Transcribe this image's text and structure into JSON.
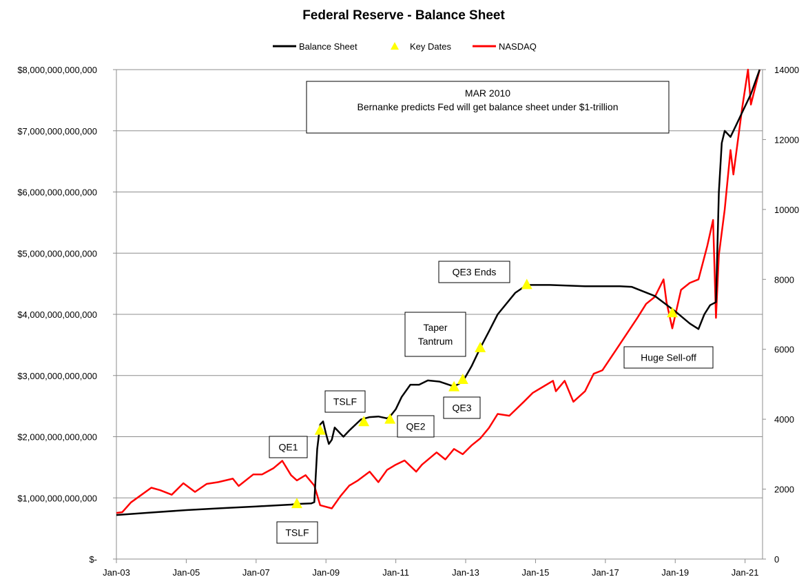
{
  "chart_data": {
    "type": "line",
    "title": "Federal Reserve - Balance Sheet",
    "legend": {
      "placement": "top-center",
      "entries": [
        {
          "name": "Balance Sheet",
          "color": "#000000",
          "marker": "line"
        },
        {
          "name": "Key Dates",
          "color": "#ffff00",
          "marker": "triangle"
        },
        {
          "name": "NASDAQ",
          "color": "#ff0000",
          "marker": "line"
        }
      ]
    },
    "x_axis": {
      "type": "date",
      "range": [
        "2003-01",
        "2021-07"
      ],
      "tick_labels": [
        "Jan-03",
        "Jan-05",
        "Jan-07",
        "Jan-09",
        "Jan-11",
        "Jan-13",
        "Jan-15",
        "Jan-17",
        "Jan-19",
        "Jan-21"
      ],
      "tick_dates": [
        "2003-01",
        "2005-01",
        "2007-01",
        "2009-01",
        "2011-01",
        "2013-01",
        "2015-01",
        "2017-01",
        "2019-01",
        "2021-01"
      ]
    },
    "y_left": {
      "range": [
        0,
        8000000000000
      ],
      "tick_values": [
        0,
        1000000000000,
        2000000000000,
        3000000000000,
        4000000000000,
        5000000000000,
        6000000000000,
        7000000000000,
        8000000000000
      ],
      "tick_labels": [
        "$-",
        "$1,000,000,000,000",
        "$2,000,000,000,000",
        "$3,000,000,000,000",
        "$4,000,000,000,000",
        "$5,000,000,000,000",
        "$6,000,000,000,000",
        "$7,000,000,000,000",
        "$8,000,000,000,000"
      ]
    },
    "y_right": {
      "range": [
        0,
        14000
      ],
      "tick_values": [
        0,
        2000,
        4000,
        6000,
        8000,
        10000,
        12000,
        14000
      ],
      "tick_labels": [
        "0",
        "2000",
        "4000",
        "6000",
        "8000",
        "10000",
        "12000",
        "14000"
      ]
    },
    "grid": true,
    "series": [
      {
        "name": "Balance Sheet",
        "axis": "left",
        "color": "#000000",
        "points": [
          [
            "2003-01",
            720000000000
          ],
          [
            "2004-01",
            760000000000
          ],
          [
            "2005-01",
            800000000000
          ],
          [
            "2006-01",
            830000000000
          ],
          [
            "2007-01",
            860000000000
          ],
          [
            "2008-01",
            890000000000
          ],
          [
            "2008-03",
            900000000000
          ],
          [
            "2008-08",
            910000000000
          ],
          [
            "2008-09",
            930000000000
          ],
          [
            "2008-10",
            1800000000000
          ],
          [
            "2008-11",
            2200000000000
          ],
          [
            "2008-12",
            2250000000000
          ],
          [
            "2009-01",
            2050000000000
          ],
          [
            "2009-02",
            1880000000000
          ],
          [
            "2009-03",
            1950000000000
          ],
          [
            "2009-04",
            2150000000000
          ],
          [
            "2009-05",
            2100000000000
          ],
          [
            "2009-06",
            2050000000000
          ],
          [
            "2009-07",
            2000000000000
          ],
          [
            "2009-09",
            2100000000000
          ],
          [
            "2010-01",
            2280000000000
          ],
          [
            "2010-04",
            2320000000000
          ],
          [
            "2010-07",
            2330000000000
          ],
          [
            "2010-10",
            2300000000000
          ],
          [
            "2010-11",
            2330000000000
          ],
          [
            "2011-01",
            2450000000000
          ],
          [
            "2011-03",
            2650000000000
          ],
          [
            "2011-06",
            2850000000000
          ],
          [
            "2011-09",
            2850000000000
          ],
          [
            "2011-12",
            2920000000000
          ],
          [
            "2012-04",
            2900000000000
          ],
          [
            "2012-09",
            2820000000000
          ],
          [
            "2012-12",
            2900000000000
          ],
          [
            "2013-03",
            3150000000000
          ],
          [
            "2013-06",
            3450000000000
          ],
          [
            "2013-09",
            3720000000000
          ],
          [
            "2013-12",
            4000000000000
          ],
          [
            "2014-06",
            4350000000000
          ],
          [
            "2014-10",
            4480000000000
          ],
          [
            "2015-06",
            4480000000000
          ],
          [
            "2016-06",
            4460000000000
          ],
          [
            "2017-06",
            4460000000000
          ],
          [
            "2017-10",
            4450000000000
          ],
          [
            "2018-06",
            4300000000000
          ],
          [
            "2019-01",
            4050000000000
          ],
          [
            "2019-06",
            3850000000000
          ],
          [
            "2019-09",
            3760000000000
          ],
          [
            "2019-11",
            4000000000000
          ],
          [
            "2020-01",
            4150000000000
          ],
          [
            "2020-03",
            4200000000000
          ],
          [
            "2020-04",
            6000000000000
          ],
          [
            "2020-05",
            6800000000000
          ],
          [
            "2020-06",
            7000000000000
          ],
          [
            "2020-08",
            6900000000000
          ],
          [
            "2020-10",
            7100000000000
          ],
          [
            "2020-12",
            7300000000000
          ],
          [
            "2021-03",
            7600000000000
          ],
          [
            "2021-06",
            8000000000000
          ]
        ]
      },
      {
        "name": "NASDAQ",
        "axis": "right",
        "color": "#ff0000",
        "points": [
          [
            "2003-01",
            1320
          ],
          [
            "2003-03",
            1340
          ],
          [
            "2003-06",
            1620
          ],
          [
            "2003-09",
            1800
          ],
          [
            "2004-01",
            2040
          ],
          [
            "2004-04",
            1970
          ],
          [
            "2004-08",
            1840
          ],
          [
            "2004-12",
            2170
          ],
          [
            "2005-04",
            1920
          ],
          [
            "2005-08",
            2150
          ],
          [
            "2005-12",
            2200
          ],
          [
            "2006-05",
            2300
          ],
          [
            "2006-07",
            2090
          ],
          [
            "2006-12",
            2420
          ],
          [
            "2007-03",
            2420
          ],
          [
            "2007-07",
            2600
          ],
          [
            "2007-10",
            2810
          ],
          [
            "2008-01",
            2400
          ],
          [
            "2008-03",
            2250
          ],
          [
            "2008-06",
            2400
          ],
          [
            "2008-09",
            2100
          ],
          [
            "2008-11",
            1540
          ],
          [
            "2009-03",
            1450
          ],
          [
            "2009-06",
            1800
          ],
          [
            "2009-09",
            2100
          ],
          [
            "2009-12",
            2250
          ],
          [
            "2010-04",
            2500
          ],
          [
            "2010-07",
            2200
          ],
          [
            "2010-10",
            2550
          ],
          [
            "2011-01",
            2700
          ],
          [
            "2011-04",
            2820
          ],
          [
            "2011-08",
            2500
          ],
          [
            "2011-10",
            2700
          ],
          [
            "2012-03",
            3050
          ],
          [
            "2012-06",
            2850
          ],
          [
            "2012-09",
            3150
          ],
          [
            "2012-12",
            3000
          ],
          [
            "2013-03",
            3250
          ],
          [
            "2013-06",
            3450
          ],
          [
            "2013-09",
            3750
          ],
          [
            "2013-12",
            4150
          ],
          [
            "2014-04",
            4100
          ],
          [
            "2014-09",
            4500
          ],
          [
            "2014-12",
            4750
          ],
          [
            "2015-04",
            4950
          ],
          [
            "2015-07",
            5100
          ],
          [
            "2015-08",
            4800
          ],
          [
            "2015-11",
            5100
          ],
          [
            "2016-02",
            4500
          ],
          [
            "2016-06",
            4800
          ],
          [
            "2016-09",
            5300
          ],
          [
            "2016-12",
            5400
          ],
          [
            "2017-06",
            6150
          ],
          [
            "2017-12",
            6900
          ],
          [
            "2018-03",
            7300
          ],
          [
            "2018-06",
            7500
          ],
          [
            "2018-09",
            8000
          ],
          [
            "2018-10",
            7350
          ],
          [
            "2018-12",
            6600
          ],
          [
            "2019-03",
            7700
          ],
          [
            "2019-06",
            7900
          ],
          [
            "2019-09",
            8000
          ],
          [
            "2019-12",
            8950
          ],
          [
            "2020-02",
            9700
          ],
          [
            "2020-03",
            6900
          ],
          [
            "2020-04",
            8700
          ],
          [
            "2020-06",
            10000
          ],
          [
            "2020-08",
            11700
          ],
          [
            "2020-09",
            11000
          ],
          [
            "2020-12",
            12900
          ],
          [
            "2021-02",
            14000
          ],
          [
            "2021-03",
            13000
          ],
          [
            "2021-06",
            14300
          ]
        ]
      },
      {
        "name": "Key Dates",
        "axis": "left",
        "color": "#ffff00",
        "points": [
          [
            "2008-03",
            900000000000
          ],
          [
            "2008-11",
            2100000000000
          ],
          [
            "2010-02",
            2240000000000
          ],
          [
            "2010-11",
            2280000000000
          ],
          [
            "2012-09",
            2810000000000
          ],
          [
            "2012-12",
            2930000000000
          ],
          [
            "2013-06",
            3450000000000
          ],
          [
            "2014-10",
            4480000000000
          ],
          [
            "2018-12",
            4020000000000
          ]
        ]
      }
    ],
    "annotations": [
      {
        "lines": [
          "MAR 2010",
          "Bernanke predicts Fed will get balance sheet under $1-trillion"
        ]
      },
      {
        "lines": [
          "QE3 Ends"
        ]
      },
      {
        "lines": [
          "Taper",
          "Tantrum"
        ]
      },
      {
        "lines": [
          "Huge Sell-off"
        ]
      },
      {
        "lines": [
          "TSLF"
        ]
      },
      {
        "lines": [
          "QE1"
        ]
      },
      {
        "lines": [
          "QE2"
        ]
      },
      {
        "lines": [
          "QE3"
        ]
      },
      {
        "lines": [
          "TSLF"
        ]
      }
    ]
  }
}
